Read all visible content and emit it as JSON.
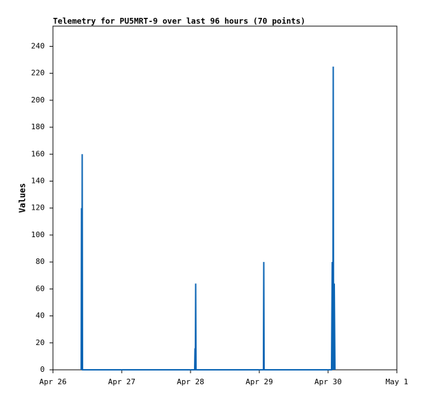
{
  "chart_data": {
    "type": "line",
    "title": "Telemetry for PU5MRT-9 over last 96 hours (70 points)",
    "y_label": "Values",
    "x": [
      0.41,
      0.415,
      0.42,
      0.425,
      0.43,
      2.06,
      2.065,
      2.07,
      2.075,
      2.08,
      3.06,
      3.065,
      3.07,
      4.05,
      4.06,
      4.07,
      4.075,
      4.08,
      4.09,
      4.1
    ],
    "series": [
      {
        "name": "Values",
        "color": "#0a64b4",
        "values": [
          0,
          120,
          0,
          160,
          0,
          0,
          16,
          0,
          64,
          0,
          0,
          80,
          0,
          0,
          80,
          0,
          225,
          0,
          64,
          0
        ]
      }
    ],
    "xlim": [
      0,
      5
    ],
    "xticks": [
      {
        "value": 0,
        "label": "Apr 26"
      },
      {
        "value": 1,
        "label": "Apr 27"
      },
      {
        "value": 2,
        "label": "Apr 28"
      },
      {
        "value": 3,
        "label": "Apr 29"
      },
      {
        "value": 4,
        "label": "Apr 30"
      },
      {
        "value": 5,
        "label": "May 1"
      }
    ],
    "ylim": [
      0,
      255
    ],
    "yticks": [
      0,
      20,
      40,
      60,
      80,
      100,
      120,
      140,
      160,
      180,
      200,
      220,
      240
    ],
    "grid": false
  }
}
